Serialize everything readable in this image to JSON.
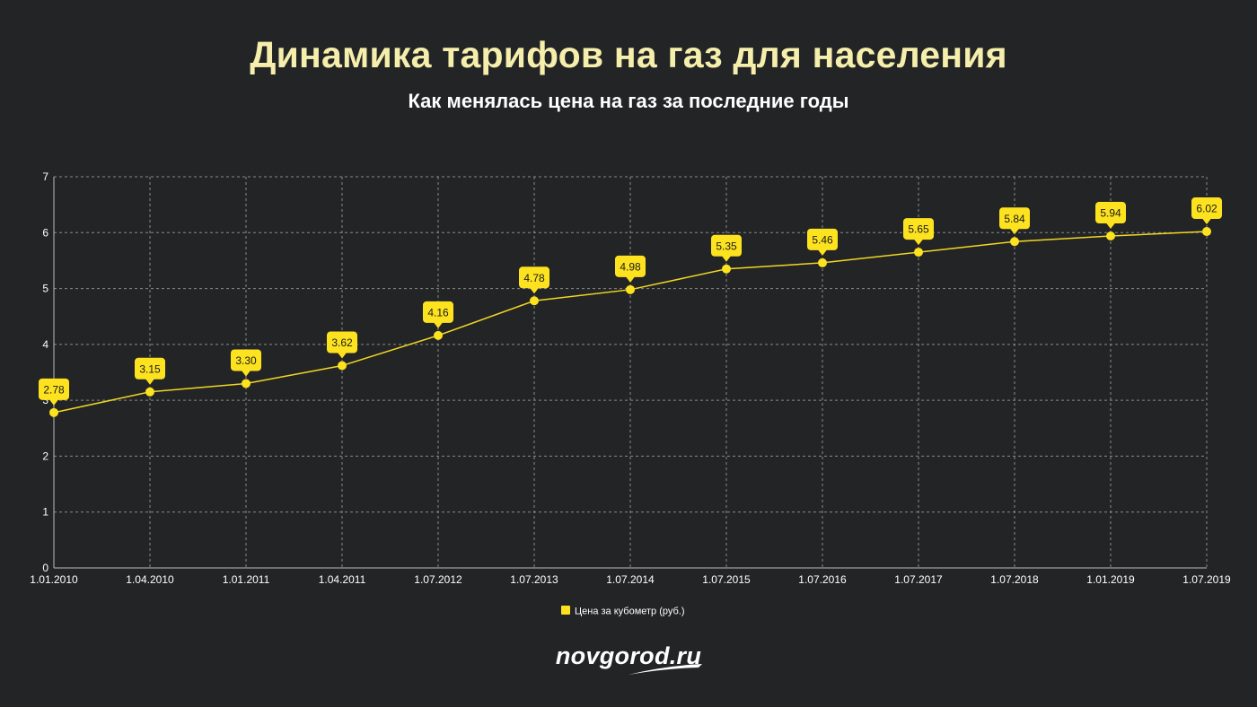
{
  "header": {
    "title": "Динамика тарифов на газ для населения",
    "subtitle": "Как менялась цена на газ за последние годы"
  },
  "brand": {
    "logo_text": "novgorod.ru"
  },
  "colors": {
    "background": "#232426",
    "title": "#f6eeab",
    "line": "#f1d722",
    "marker": "#fde21f",
    "label_box": "#fde21f",
    "label_text": "#1a1a1a",
    "grid": "#8a8a8a",
    "axis_text": "#ffffff"
  },
  "chart_data": {
    "type": "line",
    "categories": [
      "1.01.2010",
      "1.04.2010",
      "1.01.2011",
      "1.04.2011",
      "1.07.2012",
      "1.07.2013",
      "1.07.2014",
      "1.07.2015",
      "1.07.2016",
      "1.07.2017",
      "1.07.2018",
      "1.01.2019",
      "1.07.2019"
    ],
    "series": [
      {
        "name": "Цена за кубометр (руб.)",
        "values": [
          2.78,
          3.15,
          3.3,
          3.62,
          4.16,
          4.78,
          4.98,
          5.35,
          5.46,
          5.65,
          5.84,
          5.94,
          6.02
        ],
        "labels": [
          "2.78",
          "3.15",
          "3.30",
          "3.62",
          "4.16",
          "4.78",
          "4.98",
          "5.35",
          "5.46",
          "5.65",
          "5.84",
          "5.94",
          "6.02"
        ]
      }
    ],
    "y_ticks": [
      "0",
      "1",
      "2",
      "3",
      "4",
      "5",
      "6",
      "7"
    ],
    "ylim": [
      0,
      7
    ],
    "grid": true,
    "grid_style": "dotted",
    "legend_position": "bottom-center"
  }
}
